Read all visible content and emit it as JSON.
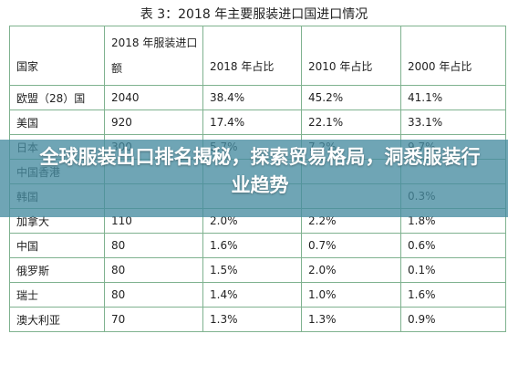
{
  "table": {
    "caption": "表 3：2018 年主要服装进口国进口情况",
    "headers": {
      "country": "国家",
      "import_2018": "2018 年服装进口额",
      "share_2018": "2018 年占比",
      "share_2010": "2010 年占比",
      "share_2000": "2000 年占比"
    },
    "rows": [
      {
        "country": "欧盟（28）国",
        "import_2018": "2040",
        "share_2018": "38.4%",
        "share_2010": "45.2%",
        "share_2000": "41.1%"
      },
      {
        "country": "美国",
        "import_2018": "920",
        "share_2018": "17.4%",
        "share_2010": "22.1%",
        "share_2000": "33.1%"
      },
      {
        "country": "日本",
        "import_2018": "300",
        "share_2018": "5.7%",
        "share_2010": "7.2%",
        "share_2000": "9.7%"
      },
      {
        "country": "中国香港",
        "import_2018": "",
        "share_2018": "",
        "share_2010": "",
        "share_2000": ""
      },
      {
        "country": "韩国",
        "import_2018": "",
        "share_2018": "",
        "share_2010": "",
        "share_2000": "0.3%"
      },
      {
        "country": "加拿大",
        "import_2018": "110",
        "share_2018": "2.0%",
        "share_2010": "2.2%",
        "share_2000": "1.8%"
      },
      {
        "country": "中国",
        "import_2018": "80",
        "share_2018": "1.6%",
        "share_2010": "0.7%",
        "share_2000": "0.6%"
      },
      {
        "country": "俄罗斯",
        "import_2018": "80",
        "share_2018": "1.5%",
        "share_2010": "2.0%",
        "share_2000": "0.1%"
      },
      {
        "country": "瑞士",
        "import_2018": "80",
        "share_2018": "1.4%",
        "share_2010": "1.0%",
        "share_2000": "1.6%"
      },
      {
        "country": "澳大利亚",
        "import_2018": "70",
        "share_2018": "1.3%",
        "share_2010": "1.3%",
        "share_2000": "0.9%"
      }
    ]
  },
  "banner": {
    "title": "全球服装出口排名揭秘，探索贸易格局，洞悉服装行业趋势",
    "background_color": "#468ca0"
  },
  "colors": {
    "table_border": "#7fb28f",
    "text": "#222222"
  }
}
